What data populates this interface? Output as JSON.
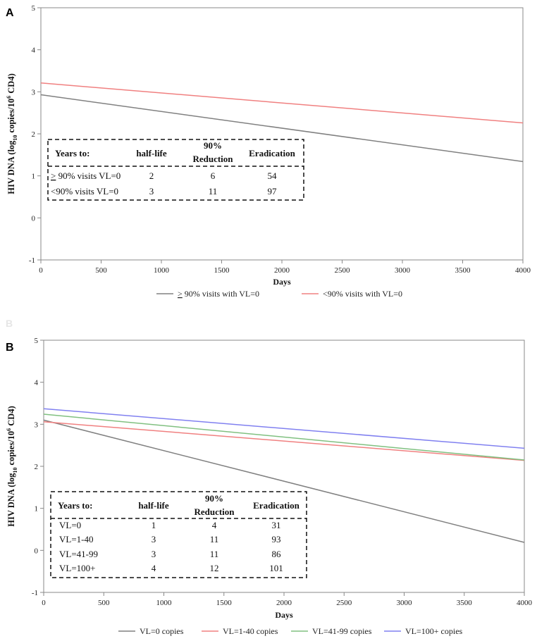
{
  "ghost_letter": "B",
  "chart_data": [
    {
      "panel": "A",
      "type": "line",
      "xlabel": "Days",
      "ylabel": "HIV DNA (log10 copies/10^6 CD4)",
      "ylabel_parts": [
        "HIV DNA (log",
        "10",
        " copies/10",
        "6",
        " CD4)"
      ],
      "xlim": [
        0,
        4000
      ],
      "ylim": [
        -1,
        5
      ],
      "xticks": [
        0,
        500,
        1000,
        1500,
        2000,
        2500,
        3000,
        3500,
        4000
      ],
      "yticks": [
        -1,
        0,
        1,
        2,
        3,
        4,
        5
      ],
      "series": [
        {
          "name": "> 90% visits with VL=0",
          "color": "#808080",
          "x": [
            0,
            4000
          ],
          "y": [
            2.93,
            1.34
          ]
        },
        {
          "name": "<90% visits with VL=0",
          "color": "#f08080",
          "x": [
            0,
            4000
          ],
          "y": [
            3.21,
            2.26
          ]
        }
      ],
      "table": {
        "headers": [
          "Years to:",
          "half-life",
          "90%",
          "Reduction",
          "Eradication"
        ],
        "rows": [
          [
            "> 90% visits VL=0",
            "2",
            "6",
            "54"
          ],
          [
            "<90% visits VL=0",
            "3",
            "11",
            "97"
          ]
        ]
      }
    },
    {
      "panel": "B",
      "type": "line",
      "xlabel": "Days",
      "ylabel": "HIV DNA (log10 copies/10^6 CD4)",
      "ylabel_parts": [
        "HIV DNA (log",
        "10",
        " copies/10",
        "6",
        " CD4)"
      ],
      "xlim": [
        0,
        4000
      ],
      "ylim": [
        -1,
        5
      ],
      "xticks": [
        0,
        500,
        1000,
        1500,
        2000,
        2500,
        3000,
        3500,
        4000
      ],
      "yticks": [
        -1,
        0,
        1,
        2,
        3,
        4,
        5
      ],
      "series": [
        {
          "name": "VL=0 copies",
          "color": "#808080",
          "x": [
            0,
            4000
          ],
          "y": [
            3.1,
            0.19
          ]
        },
        {
          "name": "VL=1-40 copies",
          "color": "#f08080",
          "x": [
            0,
            4000
          ],
          "y": [
            3.06,
            2.14
          ]
        },
        {
          "name": "VL=41-99 copies",
          "color": "#80c080",
          "x": [
            0,
            4000
          ],
          "y": [
            3.24,
            2.15
          ]
        },
        {
          "name": "VL=100+ copies",
          "color": "#8080f0",
          "x": [
            0,
            4000
          ],
          "y": [
            3.37,
            2.43
          ]
        }
      ],
      "table": {
        "headers": [
          "Years to:",
          "half-life",
          "90%",
          "Reduction",
          "Eradication"
        ],
        "rows": [
          [
            "VL=0",
            "1",
            "4",
            "31"
          ],
          [
            "VL=1-40",
            "3",
            "11",
            "93"
          ],
          [
            "VL=41-99",
            "3",
            "11",
            "86"
          ],
          [
            "VL=100+",
            "4",
            "12",
            "101"
          ]
        ]
      }
    }
  ]
}
